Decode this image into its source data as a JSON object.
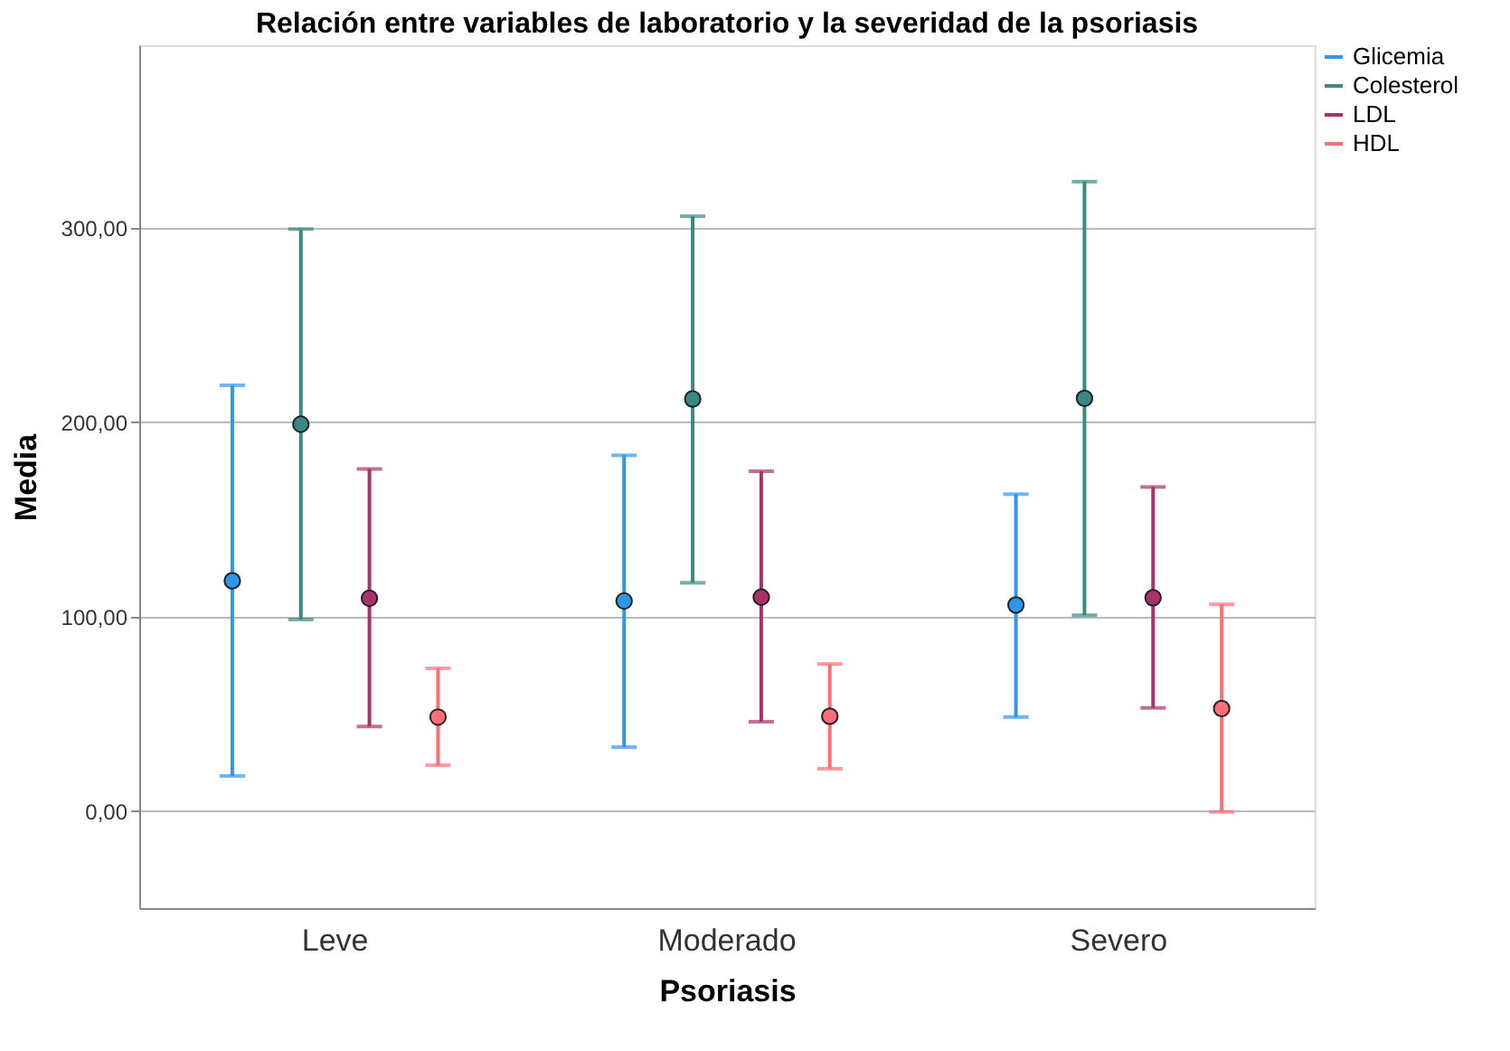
{
  "chart_data": {
    "type": "scatter",
    "title": "Relación entre variables de laboratorio y la severidad de la psoriasis",
    "xlabel": "Psoriasis",
    "ylabel": "Media",
    "categories": [
      "Leve",
      "Moderado",
      "Severo"
    ],
    "series": [
      {
        "name": "Glicemia",
        "color": "#2f97e8",
        "values": [
          118.4,
          108,
          106
        ],
        "errors": [
          [
            18,
            219
          ],
          [
            32.8,
            183
          ],
          [
            48.3,
            163
          ]
        ]
      },
      {
        "name": "Colesterol",
        "color": "#3a8985",
        "values": [
          199,
          212,
          212.3
        ],
        "errors": [
          [
            98.5,
            299.4
          ],
          [
            117.4,
            306
          ],
          [
            100.7,
            323.8
          ]
        ]
      },
      {
        "name": "LDL",
        "color": "#a8326a",
        "values": [
          109.4,
          110,
          109.7
        ],
        "errors": [
          [
            43.4,
            176
          ],
          [
            45.9,
            174.8
          ],
          [
            53,
            166.7
          ]
        ]
      },
      {
        "name": "HDL",
        "color": "#ff6e78",
        "values": [
          48.3,
          48.7,
          52.7
        ],
        "errors": [
          [
            23.5,
            73.4
          ],
          [
            21.7,
            75.6
          ],
          [
            -0.5,
            106.3
          ]
        ]
      }
    ],
    "ylim": [
      -50,
      394
    ],
    "yticks": [
      {
        "value": 0,
        "label": "0,00"
      },
      {
        "value": 100,
        "label": "100,00"
      },
      {
        "value": 200,
        "label": "200,00"
      },
      {
        "value": 300,
        "label": "300,00"
      }
    ],
    "grid": "y",
    "legend": "top right",
    "marker": "circle"
  }
}
